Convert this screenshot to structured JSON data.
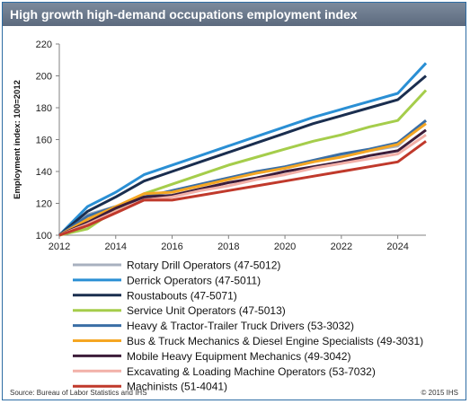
{
  "title": "High growth high-demand occupations employment index",
  "source": "Source: Bureau of Labor Statistics and IHS",
  "copyright": "© 2015 IHS",
  "chart_data": {
    "type": "line",
    "title": "High growth high-demand occupations employment index",
    "xlabel": "",
    "ylabel": "Employment index: 100=2012",
    "xlim": [
      2012,
      2025
    ],
    "ylim": [
      100,
      220
    ],
    "xticks": [
      "2012",
      "2014",
      "2016",
      "2018",
      "2020",
      "2022",
      "2024"
    ],
    "yticks": [
      "100",
      "120",
      "140",
      "160",
      "180",
      "200",
      "220"
    ],
    "grid": false,
    "legend_position": "bottom",
    "x": [
      2012,
      2013,
      2014,
      2015,
      2016,
      2017,
      2018,
      2019,
      2020,
      2021,
      2022,
      2023,
      2024,
      2025
    ],
    "series": [
      {
        "name": "Rotary Drill Operators (47-5012)",
        "color": "#a8b1bf",
        "values": [
          100,
          113,
          118,
          123,
          128,
          132,
          136,
          139,
          142,
          146,
          150,
          153,
          156,
          172
        ]
      },
      {
        "name": "Derrick Operators (47-5011)",
        "color": "#2a8fd4",
        "values": [
          100,
          118,
          127,
          138,
          144,
          150,
          156,
          162,
          168,
          174,
          179,
          184,
          189,
          208
        ]
      },
      {
        "name": "Roustabouts (47-5071)",
        "color": "#1a2e4f",
        "values": [
          100,
          115,
          124,
          134,
          140,
          146,
          152,
          158,
          164,
          170,
          175,
          180,
          185,
          200
        ]
      },
      {
        "name": "Service Unit Operators (47-5013)",
        "color": "#a5cd4b",
        "values": [
          100,
          104,
          116,
          126,
          132,
          138,
          144,
          149,
          154,
          159,
          163,
          168,
          172,
          191
        ]
      },
      {
        "name": "Heavy & Tractor-Trailer Truck Drivers (53-3032)",
        "color": "#3a6ea5",
        "values": [
          100,
          112,
          118,
          124,
          128,
          132,
          136,
          140,
          143,
          147,
          151,
          154,
          158,
          172
        ]
      },
      {
        "name": "Bus & Truck Mechanics & Diesel Engine Specialists (49-3031)",
        "color": "#f5a623",
        "values": [
          100,
          110,
          118,
          126,
          127,
          131,
          135,
          139,
          142,
          146,
          149,
          153,
          157,
          170
        ]
      },
      {
        "name": "Mobile Heavy Equipment Mechanics (49-3042)",
        "color": "#3d1d3a",
        "values": [
          100,
          108,
          117,
          124,
          125,
          129,
          133,
          136,
          140,
          143,
          146,
          150,
          153,
          166
        ]
      },
      {
        "name": "Excavating & Loading Machine Operators (53-7032)",
        "color": "#f2b0a8",
        "values": [
          100,
          107,
          115,
          122,
          124,
          128,
          131,
          135,
          138,
          142,
          145,
          148,
          151,
          163
        ]
      },
      {
        "name": "Machinists (51-4041)",
        "color": "#c0392b",
        "values": [
          100,
          106,
          114,
          122,
          122,
          125,
          128,
          131,
          134,
          137,
          140,
          143,
          146,
          159
        ]
      }
    ]
  }
}
